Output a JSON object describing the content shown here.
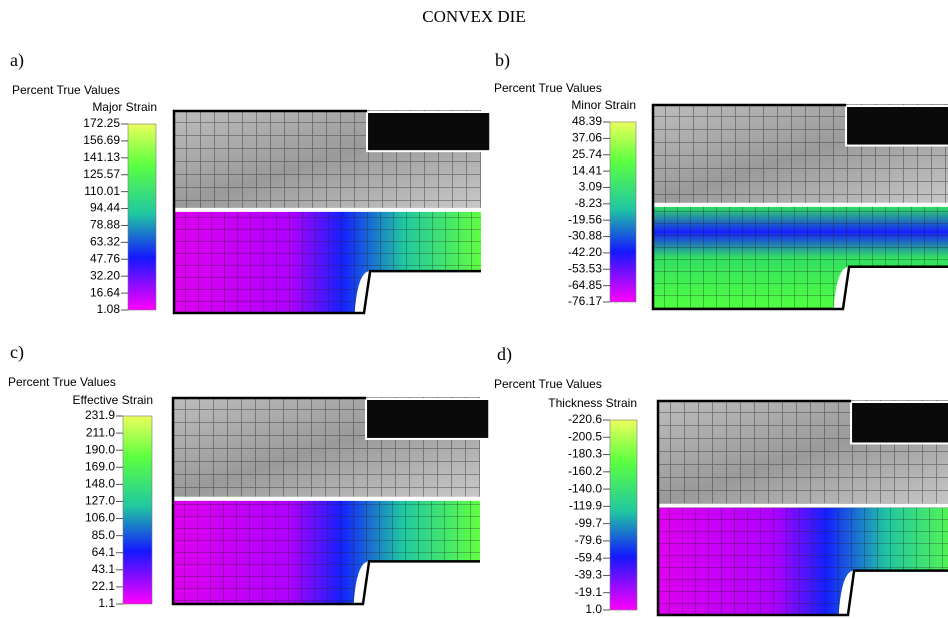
{
  "title": "CONVEX DIE",
  "panels": [
    {
      "label": "a)",
      "header": "Percent True Values",
      "scale_title": "Major Strain",
      "ticks": [
        "172.25",
        "156.69",
        "141.13",
        "125.57",
        "110.01",
        "94.44",
        "78.88",
        "63.32",
        "47.76",
        "32.20",
        "16.64",
        "1.08"
      ]
    },
    {
      "label": "b)",
      "header": "Percent True Values",
      "scale_title": "Minor Strain",
      "ticks": [
        "48.39",
        "37.06",
        "25.74",
        "14.41",
        "3.09",
        "-8.23",
        "-19.56",
        "-30.88",
        "-42.20",
        "-53.53",
        "-64.85",
        "-76.17"
      ]
    },
    {
      "label": "c)",
      "header": "Percent True Values",
      "scale_title": "Effective Strain",
      "ticks": [
        "231.9",
        "211.0",
        "190.0",
        "169.0",
        "148.0",
        "127.0",
        "106.0",
        "85.0",
        "64.1",
        "43.1",
        "22.1",
        "1.1"
      ]
    },
    {
      "label": "d)",
      "header": "Percent True Values",
      "scale_title": "Thickness Strain",
      "ticks": [
        "-220.6",
        "-200.5",
        "-180.3",
        "-160.2",
        "-140.0",
        "-119.9",
        "-99.7",
        "-79.6",
        "-59.4",
        "-39.3",
        "-19.1",
        "1.0"
      ]
    }
  ]
}
